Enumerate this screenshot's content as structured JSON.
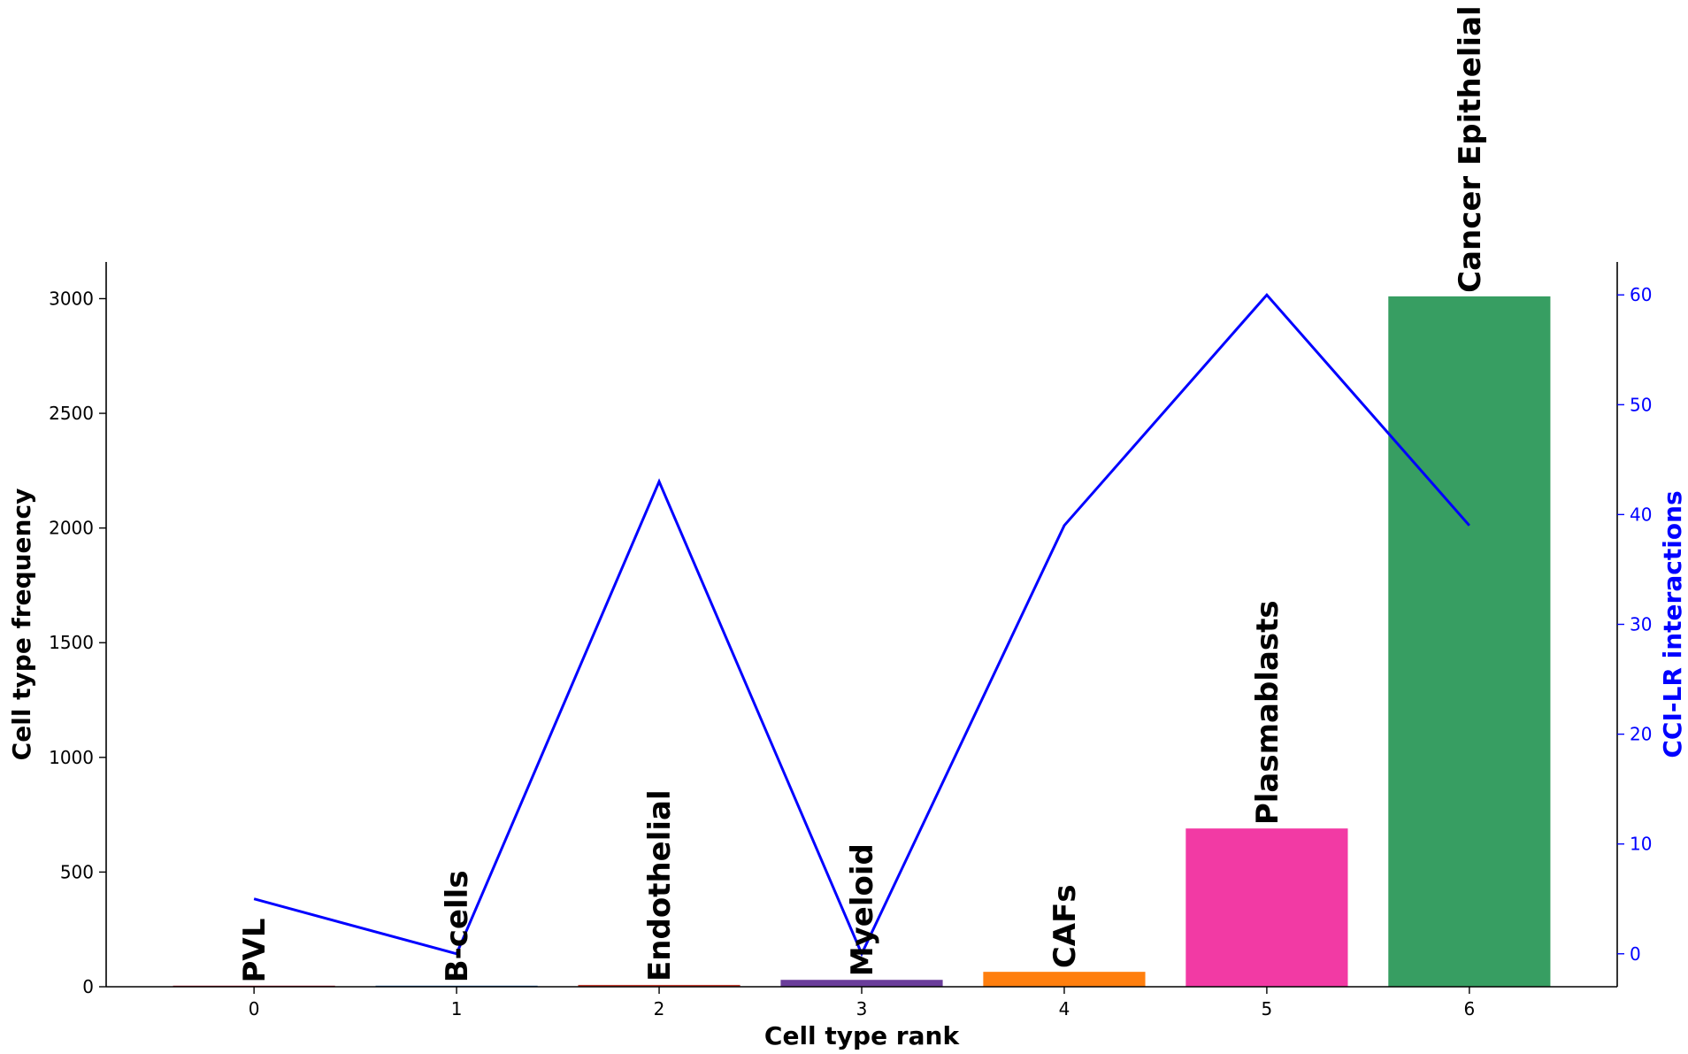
{
  "chart_data": {
    "type": "bar",
    "categories": [
      "0",
      "1",
      "2",
      "3",
      "4",
      "5",
      "6"
    ],
    "bar_labels": [
      "PVL",
      "B-cells",
      "Endothelial",
      "Myeloid",
      "CAFs",
      "Plasmablasts",
      "Cancer Epithelial"
    ],
    "series": [
      {
        "kind": "bar",
        "axis": "left",
        "values": [
          2,
          3,
          8,
          30,
          65,
          690,
          3010
        ],
        "colors": [
          "#b2182b",
          "#2166ac",
          "#c0392b",
          "#6a3d9a",
          "#ff7f0e",
          "#f23aa4",
          "#379e62"
        ]
      },
      {
        "kind": "line",
        "axis": "right",
        "values": [
          5,
          0,
          43,
          0,
          39,
          60,
          39
        ],
        "color": "#0000ff"
      }
    ],
    "xlabel": "Cell type rank",
    "ylabel": "Cell type frequency",
    "y2label": "CCI-LR interactions",
    "ylim": [
      0,
      3160
    ],
    "y2lim": [
      -3,
      63
    ],
    "yticks": [
      0,
      500,
      1000,
      1500,
      2000,
      2500,
      3000
    ],
    "y2ticks": [
      0,
      10,
      20,
      30,
      40,
      50,
      60
    ],
    "grid": false,
    "label_color_right": "#0000ff"
  }
}
